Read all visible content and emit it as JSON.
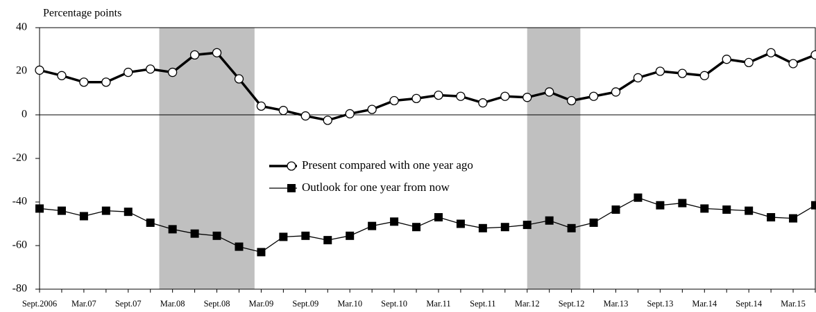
{
  "chart_data": {
    "type": "line",
    "y_label": "Percentage points",
    "categories": [
      "Sept.2006",
      null,
      "Mar.07",
      null,
      "Sept.07",
      null,
      "Mar.08",
      null,
      "Sept.08",
      null,
      "Mar.09",
      null,
      "Sept.09",
      null,
      "Mar.10",
      null,
      "Sept.10",
      null,
      "Mar.11",
      null,
      "Sept.11",
      null,
      "Mar.12",
      null,
      "Sept.12",
      null,
      "Mar.13",
      null,
      "Sept.13",
      null,
      "Mar.14",
      null,
      "Sept.14",
      null,
      "Mar.15",
      null
    ],
    "series": [
      {
        "name": "Present compared with one year ago",
        "color": "#000000",
        "marker": "circle",
        "values": [
          20.5,
          18,
          15,
          15,
          19.5,
          21,
          19.5,
          27.5,
          28.5,
          16.5,
          4,
          2,
          -0.5,
          -2.5,
          0.5,
          2.5,
          6.5,
          7.5,
          9,
          8.5,
          5.5,
          8.5,
          8,
          10.5,
          6.5,
          8.5,
          10.5,
          17,
          20,
          19,
          18,
          25.5,
          24,
          28.5,
          23.5,
          27.5
        ]
      },
      {
        "name": "Outlook for one year from now",
        "color": "#000000",
        "marker": "square",
        "values": [
          -43,
          -44,
          -46.5,
          -44,
          -44.5,
          -49.5,
          -52.5,
          -54.5,
          -55.5,
          -60.5,
          -63,
          -56,
          -55.5,
          -57.5,
          -55.5,
          -51,
          -49,
          -51.5,
          -47,
          -50,
          -52,
          -51.5,
          -50.5,
          -48.5,
          -52,
          -49.5,
          -43.5,
          -38,
          -41.5,
          -40.5,
          -43,
          -43.5,
          -44,
          -47,
          -47.5,
          -41.5
        ]
      }
    ],
    "shaded_periods": [
      {
        "start": 5.4,
        "end": 9.7
      },
      {
        "start": 22,
        "end": 24.4
      }
    ],
    "shade_color": "#c0c0c0",
    "ylim": [
      -80,
      40
    ],
    "yticks": [
      -80,
      -60,
      -40,
      -20,
      0,
      20,
      40
    ]
  }
}
